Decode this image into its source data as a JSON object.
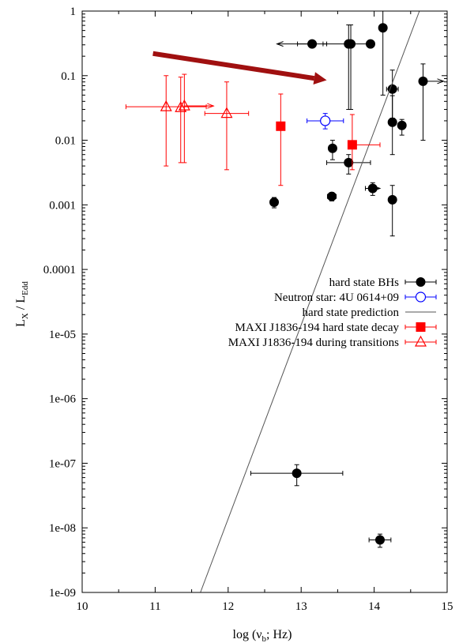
{
  "chart_data": {
    "type": "scatter",
    "title": "",
    "xlabel_main": "log (ν",
    "xlabel_sub": "b",
    "xlabel_end": "; Hz)",
    "ylabel_main": "L",
    "ylabel_sub1": "X",
    "ylabel_mid": " / L",
    "ylabel_sub2": "Edd",
    "xlim": [
      10,
      15
    ],
    "ylim": [
      1e-09,
      1
    ],
    "yscale": "log",
    "x_ticks": [
      10,
      11,
      12,
      13,
      14,
      15
    ],
    "x_tick_labels": [
      "10",
      "11",
      "12",
      "13",
      "14",
      "15"
    ],
    "y_ticks": [
      1e-09,
      1e-08,
      1e-07,
      1e-06,
      1e-05,
      0.0001,
      0.001,
      0.01,
      0.1,
      1
    ],
    "y_tick_labels": [
      "1e-09",
      "1e-08",
      "1e-07",
      "1e-06",
      "1e-05",
      "0.0001",
      "0.001",
      "0.01",
      "0.1",
      "1"
    ],
    "legend_position": "center-right",
    "series": [
      {
        "name": "hard state BHs",
        "marker": "filled-circle",
        "color": "#000000",
        "points": [
          {
            "x": 13.15,
            "y": 0.31,
            "xerr": [
              0.2,
              0.2
            ],
            "yerr": [
              0,
              0
            ],
            "xarrow": "left"
          },
          {
            "x": 13.65,
            "y": 0.31,
            "xerr": [
              0.35,
              0.35
            ],
            "yerr": [
              0.28,
              0.3
            ]
          },
          {
            "x": 13.68,
            "y": 0.31,
            "xerr": [
              0,
              0
            ],
            "yerr": [
              0.28,
              0.3
            ]
          },
          {
            "x": 13.95,
            "y": 0.31,
            "xerr": [
              0,
              0
            ],
            "yerr": [
              0,
              0
            ]
          },
          {
            "x": 14.12,
            "y": 0.55,
            "xerr": [
              0,
              0
            ],
            "yerr": [
              0.5,
              0.45
            ]
          },
          {
            "x": 14.25,
            "y": 0.062,
            "xerr": [
              0.08,
              0.08
            ],
            "yerr": [
              0.04,
              0.06
            ]
          },
          {
            "x": 14.25,
            "y": 0.019,
            "xerr": [
              0,
              0
            ],
            "yerr": [
              0.013,
              0.03
            ]
          },
          {
            "x": 14.38,
            "y": 0.017,
            "xerr": [
              0.05,
              0.05
            ],
            "yerr": [
              0.005,
              0.004
            ]
          },
          {
            "x": 14.67,
            "y": 0.082,
            "xerr": [
              0,
              0
            ],
            "yerr": [
              0.072,
              0.07
            ],
            "xarrow": "right"
          },
          {
            "x": 13.43,
            "y": 0.0075,
            "xerr": [
              0.05,
              0.05
            ],
            "yerr": [
              0.0025,
              0.0025
            ]
          },
          {
            "x": 13.65,
            "y": 0.0045,
            "xerr": [
              0.3,
              0.3
            ],
            "yerr": [
              0.0015,
              0.0015
            ]
          },
          {
            "x": 12.63,
            "y": 0.0011,
            "xerr": [
              0.05,
              0.05
            ],
            "yerr": [
              0.0002,
              0.0002
            ]
          },
          {
            "x": 13.42,
            "y": 0.00135,
            "xerr": [
              0.06,
              0.06
            ],
            "yerr": [
              0.0002,
              0.0002
            ]
          },
          {
            "x": 13.98,
            "y": 0.0018,
            "xerr": [
              0.1,
              0.1
            ],
            "yerr": [
              0.0004,
              0.0004
            ],
            "xarrow": "right"
          },
          {
            "x": 14.25,
            "y": 0.0012,
            "xerr": [
              0,
              0
            ],
            "yerr": [
              0.00087,
              0.0008
            ]
          },
          {
            "x": 12.94,
            "y": 7e-08,
            "xerr": [
              0.63,
              0.63
            ],
            "yerr": [
              2.5e-08,
              2.5e-08
            ]
          },
          {
            "x": 14.08,
            "y": 6.5e-09,
            "xerr": [
              0.15,
              0.15
            ],
            "yerr": [
              1.5e-09,
              1.5e-09
            ]
          }
        ]
      },
      {
        "name": "Neutron star: 4U 0614+09",
        "marker": "open-circle",
        "color": "#0000ff",
        "points": [
          {
            "x": 13.33,
            "y": 0.02,
            "xerr": [
              0.25,
              0.25
            ],
            "yerr": [
              0.005,
              0.006
            ]
          }
        ]
      },
      {
        "name": "hard state prediction",
        "marker": "line",
        "color": "#555555",
        "points": [
          {
            "x": 11.62,
            "y": 1e-09
          },
          {
            "x": 14.62,
            "y": 1
          }
        ]
      },
      {
        "name": "MAXI J1836-194 hard state decay",
        "marker": "filled-square",
        "color": "#ff0000",
        "points": [
          {
            "x": 12.72,
            "y": 0.0165,
            "xerr": [
              0,
              0
            ],
            "yerr": [
              0.0145,
              0.0355
            ]
          },
          {
            "x": 13.7,
            "y": 0.0085,
            "xerr": [
              0,
              0.38
            ],
            "yerr": [
              0.005,
              0.0165
            ]
          }
        ]
      },
      {
        "name": "MAXI J1836-194 during transitions",
        "marker": "open-triangle",
        "color": "#ff0000",
        "points": [
          {
            "x": 11.15,
            "y": 0.033,
            "xerr": [
              0.55,
              0.55
            ],
            "yerr": [
              0.029,
              0.067
            ]
          },
          {
            "x": 11.35,
            "y": 0.032,
            "xerr": [
              0,
              0
            ],
            "yerr": [
              0.0275,
              0.063
            ]
          },
          {
            "x": 11.4,
            "y": 0.034,
            "xerr": [
              0,
              0.4
            ],
            "yerr": [
              0.0295,
              0.071
            ],
            "xarrow": "right"
          },
          {
            "x": 11.98,
            "y": 0.026,
            "xerr": [
              0.3,
              0.3
            ],
            "yerr": [
              0.0225,
              0.054
            ]
          }
        ]
      }
    ],
    "annotations": [
      {
        "type": "arrow",
        "color": "#a01010",
        "from": {
          "x": 10.97,
          "y": 0.22
        },
        "to": {
          "x": 13.35,
          "y": 0.085
        }
      }
    ]
  }
}
